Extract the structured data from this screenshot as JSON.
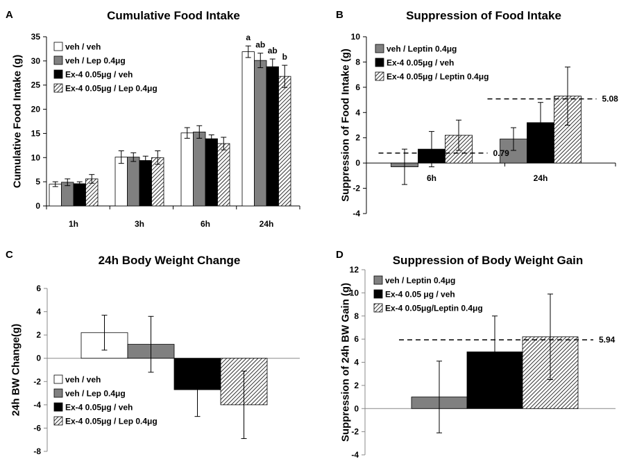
{
  "chart_data": [
    {
      "panel": "A",
      "type": "bar",
      "title": "Cumulative Food Intake",
      "ylabel": "Cumulative  Food  Intake (g)",
      "xlabel": "",
      "ylim": [
        0,
        35
      ],
      "yticks": [
        0,
        5,
        10,
        15,
        20,
        25,
        30,
        35
      ],
      "categories": [
        "1h",
        "3h",
        "6h",
        "24h"
      ],
      "legend_position": "top-left",
      "series": [
        {
          "name": "veh / veh",
          "style": "white",
          "values": [
            4.5,
            10.1,
            15.1,
            31.9
          ],
          "errors": [
            0.5,
            1.3,
            1.1,
            1.2
          ]
        },
        {
          "name": "veh / Lep 0.4μg",
          "style": "grey",
          "values": [
            4.9,
            10.1,
            15.3,
            30.1
          ],
          "errors": [
            0.7,
            0.9,
            1.3,
            1.5
          ]
        },
        {
          "name": "Ex-4  0.05μg / veh",
          "style": "black",
          "values": [
            4.6,
            9.4,
            13.9,
            28.8
          ],
          "errors": [
            0.4,
            0.9,
            0.8,
            1.6
          ]
        },
        {
          "name": "Ex-4  0.05μg / Lep 0.4μg",
          "style": "hatch",
          "values": [
            5.6,
            10.0,
            12.9,
            26.8
          ],
          "errors": [
            0.9,
            1.4,
            1.3,
            2.3
          ]
        }
      ],
      "annotations": [
        {
          "category": "24h",
          "series": 0,
          "text": "a"
        },
        {
          "category": "24h",
          "series": 1,
          "text": "ab"
        },
        {
          "category": "24h",
          "series": 2,
          "text": "ab"
        },
        {
          "category": "24h",
          "series": 3,
          "text": "b"
        }
      ]
    },
    {
      "panel": "B",
      "type": "bar",
      "title": "Suppression of Food Intake",
      "ylabel": "Suppression of  Food Intake (g)",
      "xlabel": "",
      "ylim": [
        -4,
        10
      ],
      "yticks": [
        -4,
        -2,
        0,
        2,
        4,
        6,
        8,
        10
      ],
      "categories": [
        "6h",
        "24h"
      ],
      "legend_position": "top-left",
      "series": [
        {
          "name": "veh / Leptin 0.4μg",
          "style": "grey",
          "values": [
            -0.3,
            1.9
          ],
          "errors": [
            1.4,
            0.9
          ]
        },
        {
          "name": "Ex-4  0.05μg / veh",
          "style": "black",
          "values": [
            1.1,
            3.2
          ],
          "errors": [
            1.4,
            1.6
          ]
        },
        {
          "name": "Ex-4  0.05μg / Leptin 0.4μg",
          "style": "hatch",
          "values": [
            2.2,
            5.3
          ],
          "errors": [
            1.2,
            2.3
          ]
        }
      ],
      "reference_lines": [
        {
          "category": "6h",
          "value": 0.79,
          "label": "0.79"
        },
        {
          "category": "24h",
          "value": 5.08,
          "label": "5.08"
        }
      ]
    },
    {
      "panel": "C",
      "type": "bar",
      "title": "24h Body Weight Change",
      "ylabel": "24h BW Change(g)",
      "xlabel": "",
      "ylim": [
        -8,
        6
      ],
      "yticks": [
        -8,
        -6,
        -4,
        -2,
        0,
        2,
        4,
        6
      ],
      "categories": [
        ""
      ],
      "legend_position": "bottom-left",
      "series": [
        {
          "name": "veh / veh",
          "style": "white",
          "values": [
            2.2
          ],
          "errors": [
            1.5
          ]
        },
        {
          "name": "veh / Lep 0.4μg",
          "style": "grey",
          "values": [
            1.2
          ],
          "errors": [
            2.4
          ]
        },
        {
          "name": "Ex-4  0.05μg / veh",
          "style": "black",
          "values": [
            -2.7
          ],
          "errors": [
            2.3
          ]
        },
        {
          "name": "Ex-4  0.05μg / Lep 0.4μg",
          "style": "hatch",
          "values": [
            -4.0
          ],
          "errors": [
            2.9
          ]
        }
      ]
    },
    {
      "panel": "D",
      "type": "bar",
      "title": "Suppression of Body Weight Gain",
      "ylabel": "Suppression of 24h BW Gain (g)",
      "xlabel": "",
      "ylim": [
        -4,
        12
      ],
      "yticks": [
        -4,
        -2,
        0,
        2,
        4,
        6,
        8,
        10,
        12
      ],
      "categories": [
        ""
      ],
      "legend_position": "top-left",
      "series": [
        {
          "name": "veh / Leptin 0.4μg",
          "style": "grey",
          "values": [
            1.0
          ],
          "errors": [
            3.1
          ]
        },
        {
          "name": "Ex-4  0.05 μg / veh",
          "style": "black",
          "values": [
            4.9
          ],
          "errors": [
            3.1
          ]
        },
        {
          "name": "Ex-4  0.05μg/Leptin 0.4μg",
          "style": "hatch",
          "values": [
            6.2
          ],
          "errors": [
            3.7
          ]
        }
      ],
      "reference_lines": [
        {
          "category": "",
          "value": 5.94,
          "label": "5.94"
        }
      ]
    }
  ]
}
